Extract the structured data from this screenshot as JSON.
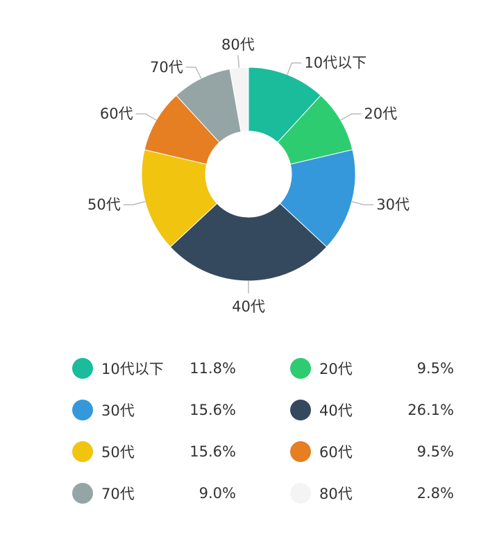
{
  "chart_data": {
    "type": "pie",
    "donut": true,
    "title": "",
    "categories": [
      "10代以下",
      "20代",
      "30代",
      "40代",
      "50代",
      "60代",
      "70代",
      "80代"
    ],
    "values": [
      11.8,
      9.5,
      15.6,
      26.1,
      15.6,
      9.5,
      9.0,
      2.8
    ],
    "value_labels": [
      "11.8%",
      "9.5%",
      "15.6%",
      "26.1%",
      "15.6%",
      "9.5%",
      "9.0%",
      "2.8%"
    ],
    "colors": [
      "#1abc9c",
      "#2ecc71",
      "#3498db",
      "#34495e",
      "#f1c40f",
      "#e67e22",
      "#95a5a6",
      "#f4f4f4"
    ],
    "legend": "bottom"
  }
}
